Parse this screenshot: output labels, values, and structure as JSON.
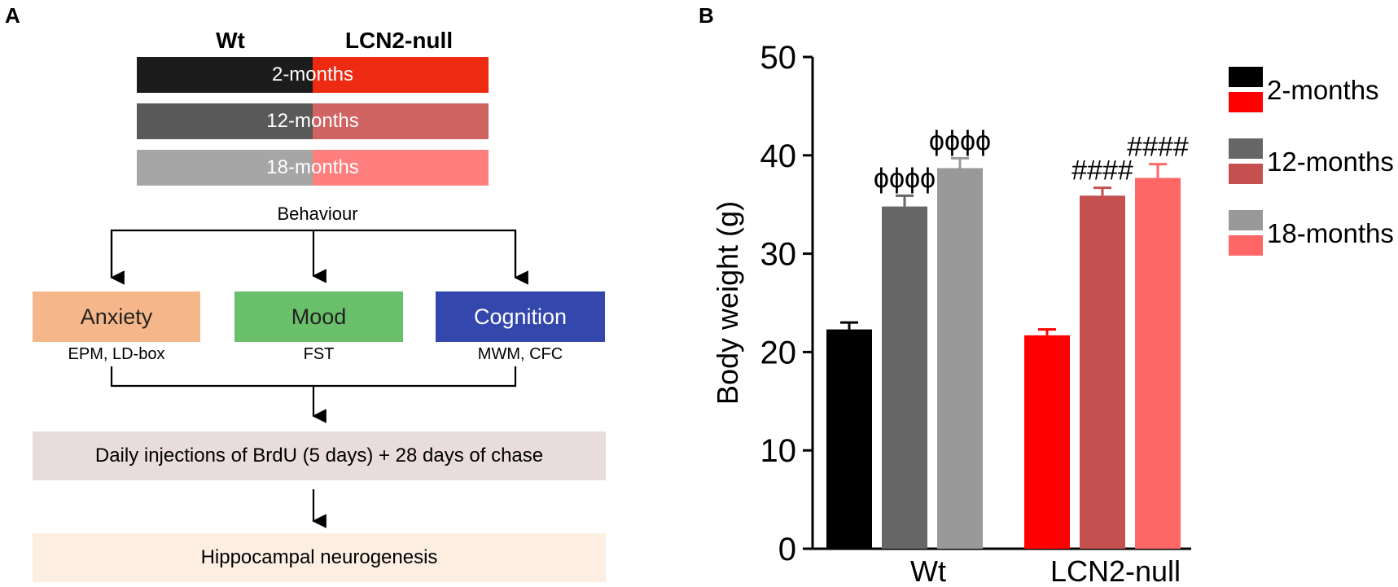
{
  "panelA": {
    "label": "A",
    "headers": {
      "wt": "Wt",
      "null": "LCN2-null"
    },
    "ages": [
      {
        "label": "2-months",
        "wt_color": "#1c1c1c",
        "null_color": "#ee2b12"
      },
      {
        "label": "12-months",
        "wt_color": "#595959",
        "null_color": "#cf6462"
      },
      {
        "label": "18-months",
        "wt_color": "#a6a6a6",
        "null_color": "#ff7e7e"
      }
    ],
    "behaviour": "Behaviour",
    "tests": [
      {
        "label": "Anxiety",
        "sub": "EPM, LD-box",
        "color": "#f5b78a",
        "text_color": "#222222"
      },
      {
        "label": "Mood",
        "sub": "FST",
        "color": "#6abf6b",
        "text_color": "#222222"
      },
      {
        "label": "Cognition",
        "sub": "MWM, CFC",
        "color": "#3347ad",
        "text_color": "#ffffff"
      }
    ],
    "injection": "Daily injections of BrdU (5 days) + 28 days of chase",
    "injection_color": "#e9dcdc",
    "outcome": "Hippocampal neurogenesis",
    "outcome_color": "#fdeee2"
  },
  "panelB": {
    "label": "B"
  },
  "chart_data": {
    "type": "bar",
    "ylabel": "Body weight (g)",
    "ylim": [
      0,
      50
    ],
    "yticks": [
      0,
      10,
      20,
      30,
      40,
      50
    ],
    "groups": [
      {
        "name": "Wt",
        "bars": [
          {
            "series": "2-months",
            "value": 22.3,
            "error": 0.7,
            "color": "#000000",
            "annotation": ""
          },
          {
            "series": "12-months",
            "value": 34.8,
            "error": 1.1,
            "color": "#666666",
            "annotation": "ϕϕϕϕ"
          },
          {
            "series": "18-months",
            "value": 38.7,
            "error": 1.0,
            "color": "#999999",
            "annotation": "ϕϕϕϕ"
          }
        ]
      },
      {
        "name": "LCN2-null",
        "bars": [
          {
            "series": "2-months",
            "value": 21.7,
            "error": 0.6,
            "color": "#ff0000",
            "annotation": ""
          },
          {
            "series": "12-months",
            "value": 35.9,
            "error": 0.8,
            "color": "#c55050",
            "annotation": "####"
          },
          {
            "series": "18-months",
            "value": 37.7,
            "error": 1.4,
            "color": "#ff6666",
            "annotation": "####"
          }
        ]
      }
    ],
    "legend": [
      {
        "label": "2-months",
        "colors": [
          "#000000",
          "#ff0000"
        ]
      },
      {
        "label": "12-months",
        "colors": [
          "#666666",
          "#c55050"
        ]
      },
      {
        "label": "18-months",
        "colors": [
          "#999999",
          "#ff6666"
        ]
      }
    ],
    "legend_position": "right"
  }
}
